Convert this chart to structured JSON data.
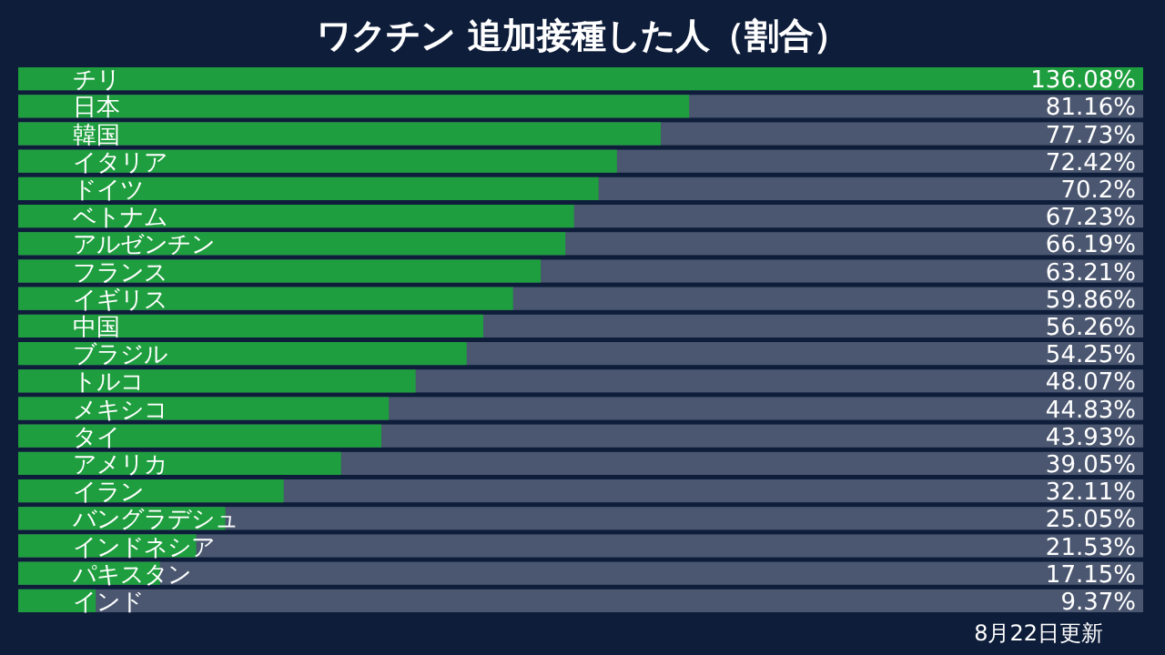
{
  "chart_data": {
    "type": "bar",
    "orientation": "horizontal",
    "title": "ワクチン 追加接種した人（割合）",
    "categories": [
      "チリ",
      "日本",
      "韓国",
      "イタリア",
      "ドイツ",
      "ベトナム",
      "アルゼンチン",
      "フランス",
      "イギリス",
      "中国",
      "ブラジル",
      "トルコ",
      "メキシコ",
      "タイ",
      "アメリカ",
      "イラン",
      "バングラデシュ",
      "インドネシア",
      "パキスタン",
      "インド"
    ],
    "values": [
      136.08,
      81.16,
      77.73,
      72.42,
      70.2,
      67.23,
      66.19,
      63.21,
      59.86,
      56.26,
      54.25,
      48.07,
      44.83,
      43.93,
      39.05,
      32.11,
      25.05,
      21.53,
      17.15,
      9.37
    ],
    "value_labels": [
      "136.08%",
      "81.16%",
      "77.73%",
      "72.42%",
      "70.2%",
      "67.23%",
      "66.19%",
      "63.21%",
      "59.86%",
      "56.26%",
      "54.25%",
      "48.07%",
      "44.83%",
      "43.93%",
      "39.05%",
      "32.11%",
      "25.05%",
      "21.53%",
      "17.15%",
      "9.37%"
    ],
    "color": "#1e9e3e",
    "annotations": [
      "8月22日更新"
    ]
  }
}
